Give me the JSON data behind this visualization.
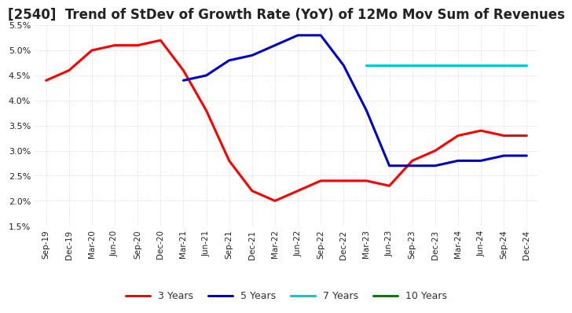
{
  "title": "[2540]  Trend of StDev of Growth Rate (YoY) of 12Mo Mov Sum of Revenues",
  "ylim": [
    0.015,
    0.055
  ],
  "yticks": [
    0.015,
    0.02,
    0.025,
    0.03,
    0.035,
    0.04,
    0.045,
    0.05,
    0.055
  ],
  "x_labels": [
    "Sep-19",
    "Dec-19",
    "Mar-20",
    "Jun-20",
    "Sep-20",
    "Dec-20",
    "Mar-21",
    "Jun-21",
    "Sep-21",
    "Dec-21",
    "Mar-22",
    "Jun-22",
    "Sep-22",
    "Dec-22",
    "Mar-23",
    "Jun-23",
    "Sep-23",
    "Dec-23",
    "Mar-24",
    "Jun-24",
    "Sep-24",
    "Dec-24"
  ],
  "series": {
    "3 Years": {
      "color": "#ff0000",
      "values": [
        0.044,
        0.046,
        0.05,
        0.051,
        0.051,
        0.052,
        0.046,
        0.038,
        0.028,
        0.022,
        0.02,
        0.022,
        0.024,
        0.024,
        0.024,
        0.023,
        0.028,
        0.03,
        0.033,
        0.034,
        0.033,
        0.033
      ]
    },
    "5 Years": {
      "color": "#0000cc",
      "values": [
        null,
        null,
        null,
        null,
        null,
        null,
        0.044,
        0.045,
        0.048,
        0.049,
        0.051,
        0.053,
        0.053,
        0.047,
        0.038,
        0.027,
        0.027,
        0.027,
        0.028,
        0.028,
        0.029,
        0.029
      ]
    },
    "7 Years": {
      "color": "#00cccc",
      "values": [
        null,
        null,
        null,
        null,
        null,
        null,
        null,
        null,
        null,
        null,
        null,
        null,
        null,
        null,
        0.047,
        0.047,
        0.047,
        0.047,
        0.047,
        0.047,
        0.047,
        0.047
      ]
    },
    "10 Years": {
      "color": "#008000",
      "values": [
        null,
        null,
        null,
        null,
        null,
        null,
        null,
        null,
        null,
        null,
        null,
        null,
        null,
        null,
        null,
        null,
        null,
        null,
        null,
        null,
        null,
        null
      ]
    }
  },
  "background_color": "#ffffff",
  "plot_bg_color": "#ffffff",
  "title_fontsize": 12,
  "linewidth": 2.2,
  "grid_color": "#cccccc",
  "grid_linestyle": "dotted"
}
